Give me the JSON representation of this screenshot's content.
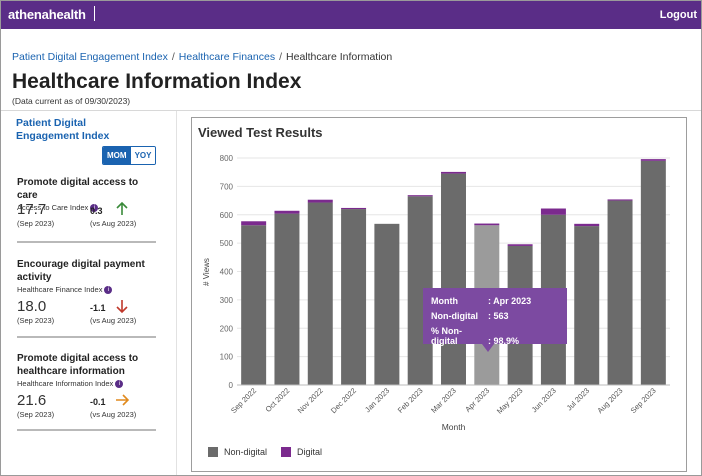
{
  "header": {
    "brand": "athenahealth",
    "logout_label": "Logout"
  },
  "breadcrumb": {
    "items": [
      "Patient Digital Engagement Index",
      "Healthcare Finances",
      "Healthcare Information"
    ]
  },
  "page": {
    "title": "Healthcare Information Index",
    "as_of": "(Data current as of 09/30/2023)"
  },
  "sidebar": {
    "title": "Patient Digital Engagement Index",
    "toggle": {
      "active": "MOM",
      "inactive": "YOY"
    },
    "metrics": [
      {
        "title": "Promote digital access to care",
        "subtitle": "Access to Care Index",
        "value": "17.7",
        "date": "(Sep 2023)",
        "delta": "0.3",
        "compare": "(vs Aug 2023)",
        "trend": "up",
        "trend_color": "#3a8a3a"
      },
      {
        "title": "Encourage digital payment activity",
        "subtitle": "Healthcare Finance Index",
        "value": "18.0",
        "date": "(Sep 2023)",
        "delta": "-1.1",
        "compare": "(vs Aug 2023)",
        "trend": "down",
        "trend_color": "#c0392b"
      },
      {
        "title": "Promote digital access to healthcare information",
        "subtitle": "Healthcare Information Index",
        "value": "21.6",
        "date": "(Sep 2023)",
        "delta": "-0.1",
        "compare": "(vs Aug 2023)",
        "trend": "right",
        "trend_color": "#e08a1e"
      }
    ]
  },
  "tooltip": {
    "rows": [
      {
        "key": "Month",
        "value": ": Apr 2023"
      },
      {
        "key": "Non-digital",
        "value": ": 563"
      },
      {
        "key": "% Non-digital",
        "value": ": 98.9%"
      }
    ]
  },
  "colors": {
    "brand": "#5a2d87",
    "link": "#1a63b0",
    "non_digital": "#6b6b6b",
    "non_digital_highlight": "#9b9b9b",
    "digital": "#7b2a8e"
  },
  "chart_data": {
    "type": "bar",
    "stacked": true,
    "title": "Viewed Test Results",
    "xlabel": "Month",
    "ylabel": "# Views",
    "ylim": [
      0,
      800
    ],
    "yticks": [
      0,
      100,
      200,
      300,
      400,
      500,
      600,
      700,
      800
    ],
    "grid": true,
    "legend_position": "bottom-left",
    "highlighted_category": "Apr 2023",
    "categories": [
      "Sep 2022",
      "Oct 2022",
      "Nov 2022",
      "Dec 2022",
      "Jan 2023",
      "Feb 2023",
      "Mar 2023",
      "Apr 2023",
      "May 2023",
      "Jun 2023",
      "Jul 2023",
      "Aug 2023",
      "Sep 2023"
    ],
    "series": [
      {
        "name": "Non-digital",
        "values": [
          563,
          604,
          643,
          620,
          568,
          665,
          745,
          563,
          490,
          600,
          560,
          650,
          790
        ]
      },
      {
        "name": "Digital",
        "values": [
          14,
          10,
          10,
          4,
          0,
          4,
          6,
          6,
          6,
          22,
          8,
          4,
          6
        ]
      }
    ]
  }
}
